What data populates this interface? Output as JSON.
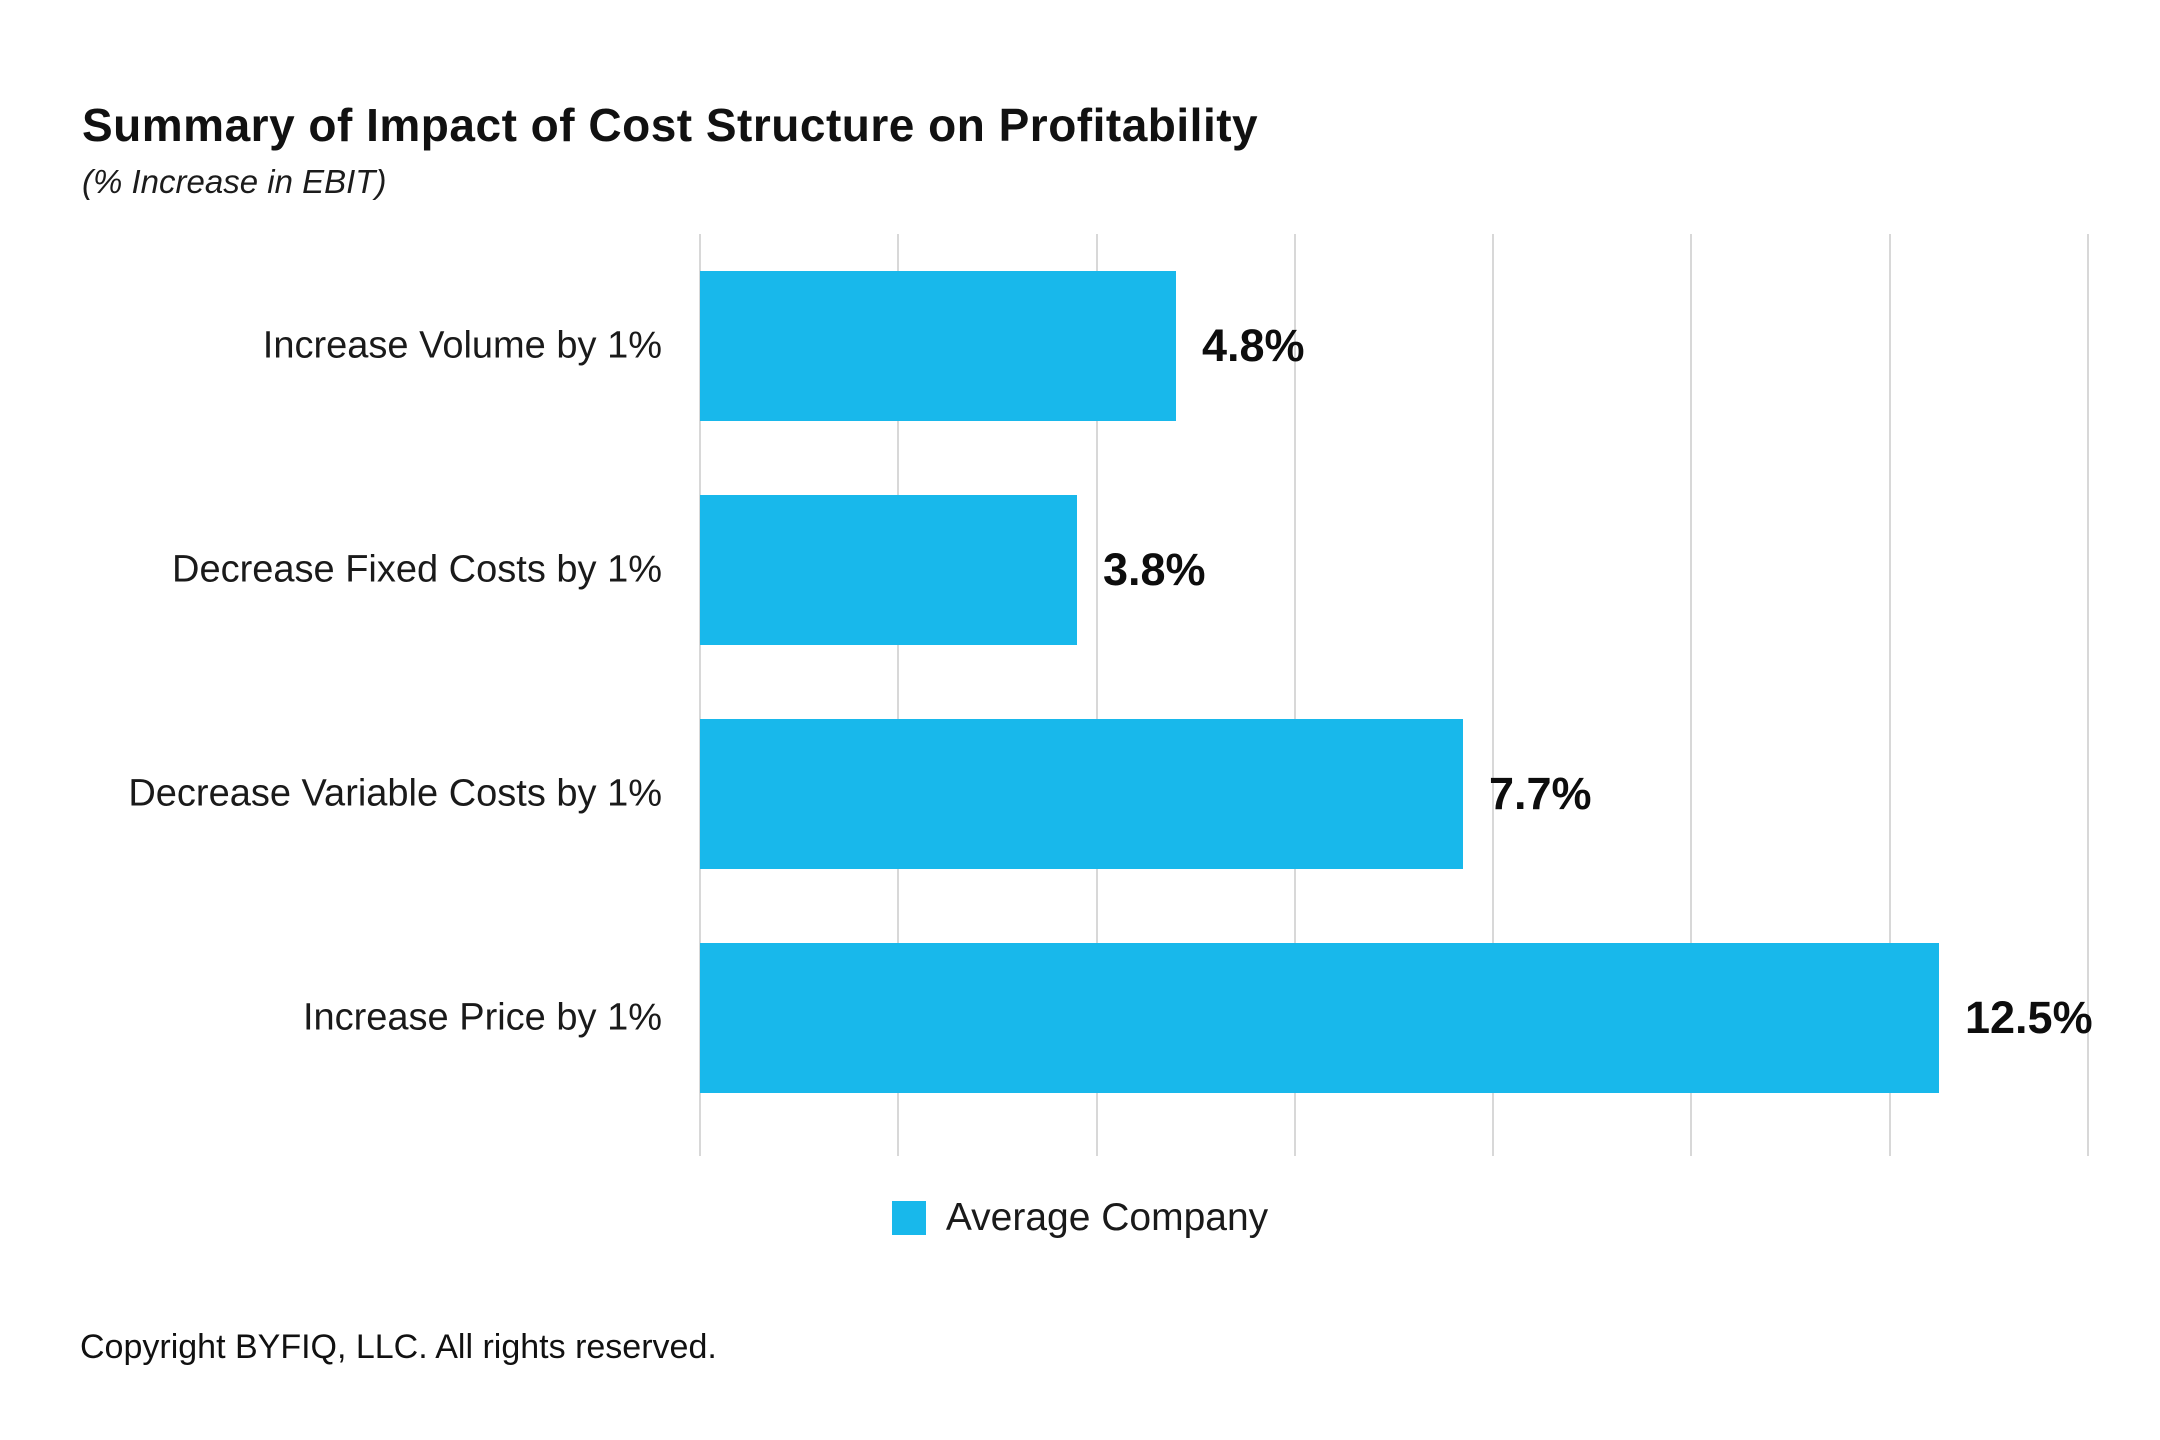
{
  "chart": {
    "title": "Summary of Impact of Cost Structure on Profitability",
    "subtitle": "(% Increase in EBIT)",
    "legend": {
      "label": "Average Company"
    }
  },
  "footer": {
    "copyright": "Copyright BYFIQ, LLC. All rights reserved."
  },
  "chart_data": {
    "type": "bar",
    "orientation": "horizontal",
    "title": "Summary of Impact of Cost Structure on Profitability",
    "subtitle": "(% Increase in EBIT)",
    "categories": [
      "Increase Volume by 1%",
      "Decrease Fixed Costs by 1%",
      "Decrease Variable Costs by 1%",
      "Increase Price by 1%"
    ],
    "series": [
      {
        "name": "Average Company",
        "values": [
          4.8,
          3.8,
          7.7,
          12.5
        ]
      }
    ],
    "value_labels": [
      "4.8%",
      "3.8%",
      "7.7%",
      "12.5%"
    ],
    "xlabel": "",
    "ylabel": "",
    "xlim": [
      0,
      14
    ],
    "grid_step": 2,
    "grid": true,
    "legend_position": "bottom",
    "colors": {
      "bar": "#18b8eb",
      "grid": "#d8d8d8",
      "text": "#0d0d0d"
    }
  }
}
